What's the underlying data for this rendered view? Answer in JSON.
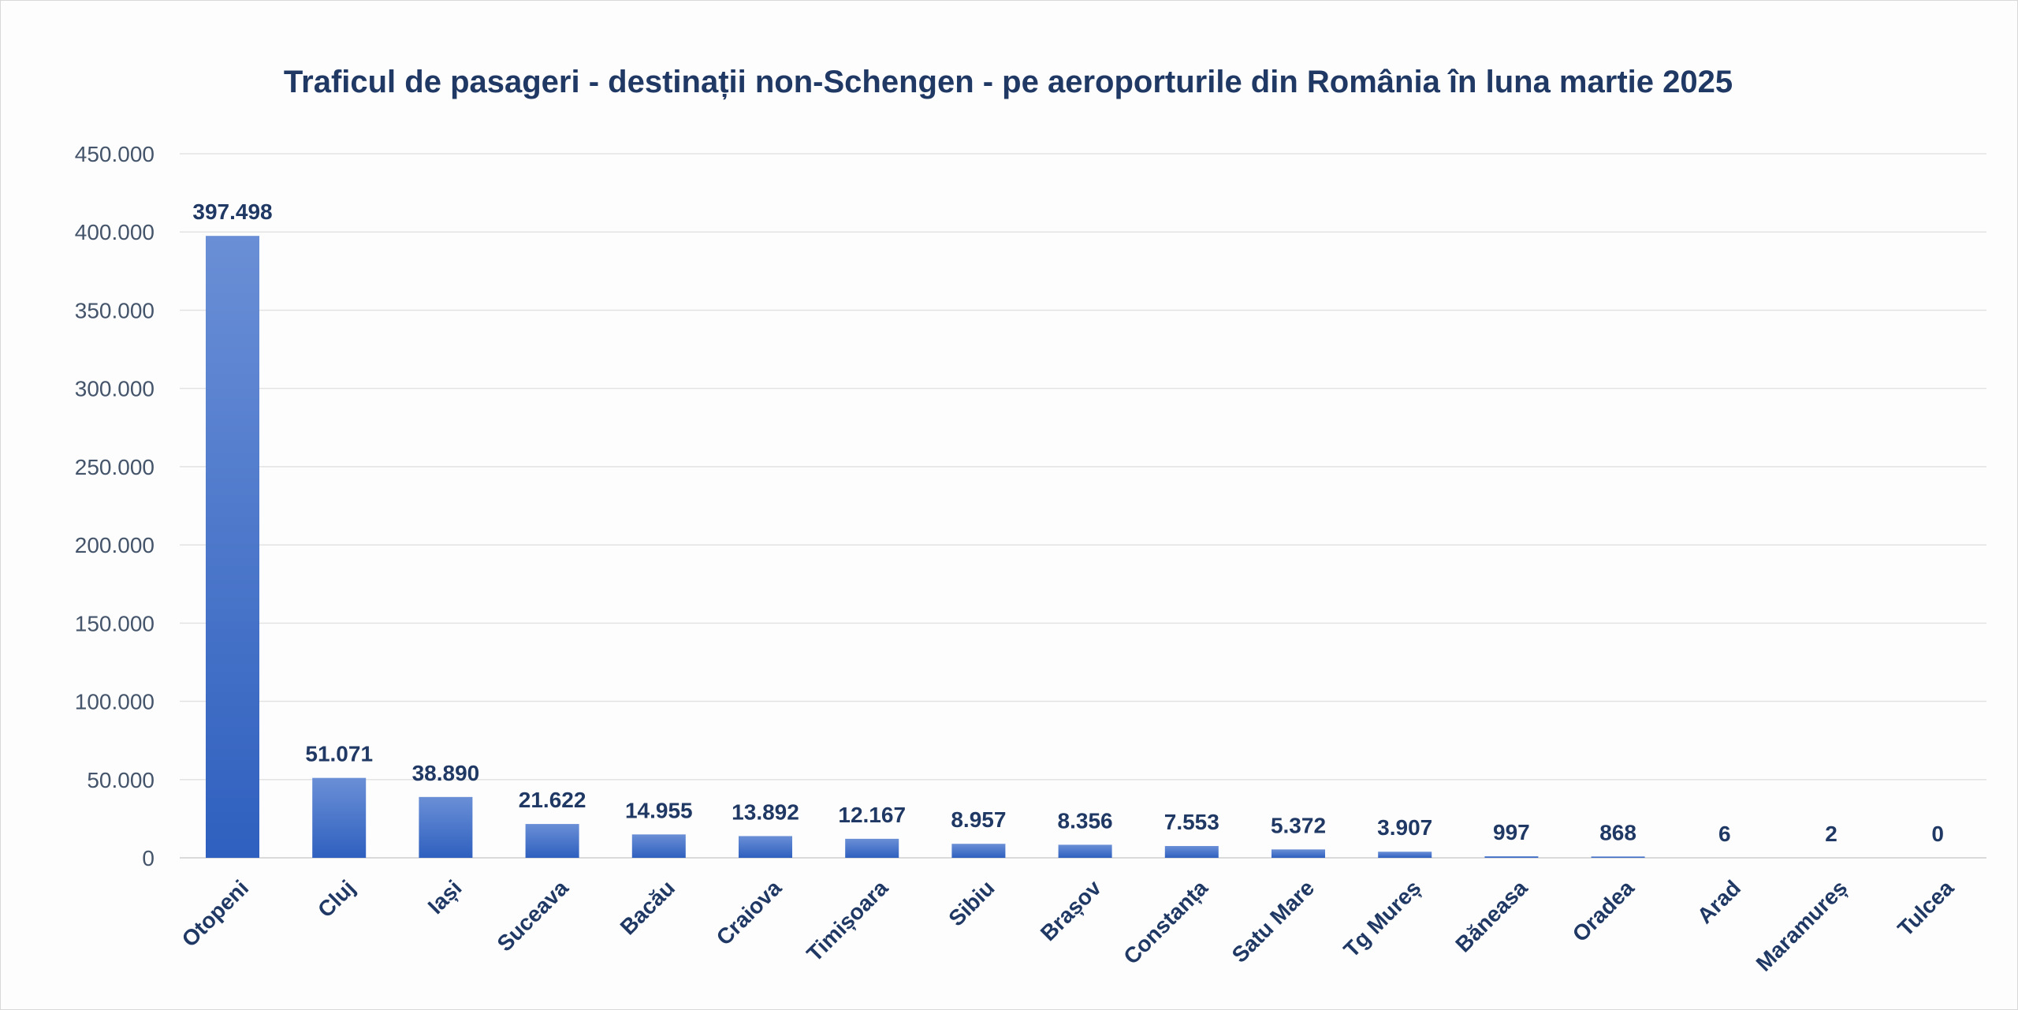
{
  "chart_data": {
    "type": "bar",
    "title": "Traficul de pasageri - destinații non-Schengen - pe aeroporturile din România în luna martie 2025",
    "xlabel": "",
    "ylabel": "",
    "categories": [
      "Otopeni",
      "Cluj",
      "Iași",
      "Suceava",
      "Bacău",
      "Craiova",
      "Timișoara",
      "Sibiu",
      "Brașov",
      "Constanța",
      "Satu Mare",
      "Tg Mureș",
      "Băneasa",
      "Oradea",
      "Arad",
      "Maramureș",
      "Tulcea"
    ],
    "values": [
      397498,
      51071,
      38890,
      21622,
      14955,
      13892,
      12167,
      8957,
      8356,
      7553,
      5372,
      3907,
      997,
      868,
      6,
      2,
      0
    ],
    "value_labels": [
      "397.498",
      "51.071",
      "38.890",
      "21.622",
      "14.955",
      "13.892",
      "12.167",
      "8.957",
      "8.356",
      "7.553",
      "5.372",
      "3.907",
      "997",
      "868",
      "6",
      "2",
      "0"
    ],
    "ylim": [
      0,
      450000
    ],
    "y_ticks": [
      0,
      50000,
      100000,
      150000,
      200000,
      250000,
      300000,
      350000,
      400000,
      450000
    ],
    "y_tick_labels": [
      "0",
      "50.000",
      "100.000",
      "150.000",
      "200.000",
      "250.000",
      "300.000",
      "350.000",
      "400.000",
      "450.000"
    ],
    "grid": true,
    "legend": "none",
    "colors": {
      "bar_top": "#6a8fd6",
      "bar_bottom": "#2f60bf",
      "title": "#1f3864",
      "axis_text": "#44546a",
      "grid": "#e3e3e3"
    }
  }
}
